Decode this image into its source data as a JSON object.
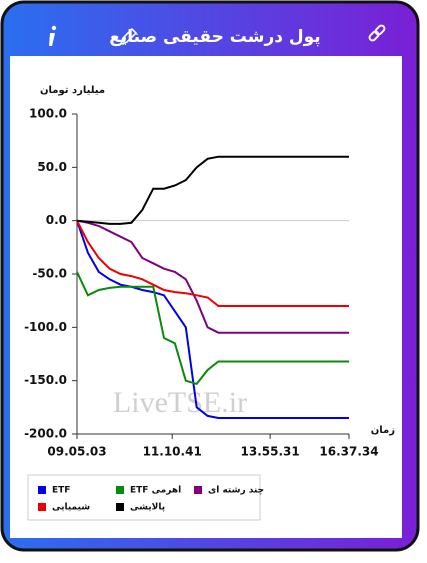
{
  "header": {
    "title": "پول درشت حقیقی صنایع"
  },
  "chart_data": {
    "type": "line",
    "y_label": "میلیارد تومان",
    "x_label": "زمان",
    "watermark": "LiveTSE.ir",
    "x": [
      0,
      4,
      8,
      12,
      16,
      20,
      24,
      28,
      32,
      36,
      40,
      44,
      48,
      52,
      56,
      60,
      64,
      68,
      72,
      76,
      80,
      84,
      88,
      92,
      96,
      100
    ],
    "xlim": [
      0,
      100
    ],
    "xticks": [
      {
        "value": 0,
        "label": "09.05.03"
      },
      {
        "value": 35,
        "label": "11.10.41"
      },
      {
        "value": 71,
        "label": "13.55.31"
      },
      {
        "value": 100,
        "label": "16.37.34"
      }
    ],
    "ylim": [
      -200,
      100
    ],
    "yticks": [
      {
        "value": -200,
        "label": "-200.0"
      },
      {
        "value": -150,
        "label": "-150.0"
      },
      {
        "value": -100,
        "label": "-100.0"
      },
      {
        "value": -50,
        "label": "-50.0"
      },
      {
        "value": 0,
        "label": "0.0"
      },
      {
        "value": 50,
        "label": "50.0"
      },
      {
        "value": 100,
        "label": "100.0"
      }
    ],
    "zero_line": true,
    "series": [
      {
        "name": "ETF",
        "color": "#0000ee",
        "values": [
          0,
          -30,
          -48,
          -55,
          -60,
          -62,
          -65,
          -67,
          -70,
          -85,
          -100,
          -175,
          -183,
          -185,
          -185,
          -185,
          -185,
          -185,
          -185,
          -185,
          -185,
          -185,
          -185,
          -185,
          -185,
          -185
        ]
      },
      {
        "name": "ETF اهرمی",
        "color": "#0a8a0a",
        "values": [
          -48,
          -70,
          -65,
          -63,
          -62,
          -62,
          -62,
          -62,
          -110,
          -115,
          -150,
          -153,
          -140,
          -132,
          -132,
          -132,
          -132,
          -132,
          -132,
          -132,
          -132,
          -132,
          -132,
          -132,
          -132,
          -132
        ]
      },
      {
        "name": "چند رشته ای",
        "color": "#800080",
        "values": [
          0,
          -2,
          -5,
          -10,
          -15,
          -20,
          -35,
          -40,
          -45,
          -48,
          -55,
          -75,
          -100,
          -105,
          -105,
          -105,
          -105,
          -105,
          -105,
          -105,
          -105,
          -105,
          -105,
          -105,
          -105,
          -105
        ]
      },
      {
        "name": "شیمیایی",
        "color": "#ee0000",
        "values": [
          0,
          -20,
          -35,
          -45,
          -50,
          -52,
          -55,
          -60,
          -65,
          -67,
          -68,
          -70,
          -72,
          -80,
          -80,
          -80,
          -80,
          -80,
          -80,
          -80,
          -80,
          -80,
          -80,
          -80,
          -80,
          -80
        ]
      },
      {
        "name": "پالایشی",
        "color": "#000000",
        "values": [
          0,
          -1,
          -2,
          -3,
          -3,
          -2,
          10,
          30,
          30,
          33,
          38,
          50,
          58,
          60,
          60,
          60,
          60,
          60,
          60,
          60,
          60,
          60,
          60,
          60,
          60,
          60
        ]
      }
    ]
  }
}
